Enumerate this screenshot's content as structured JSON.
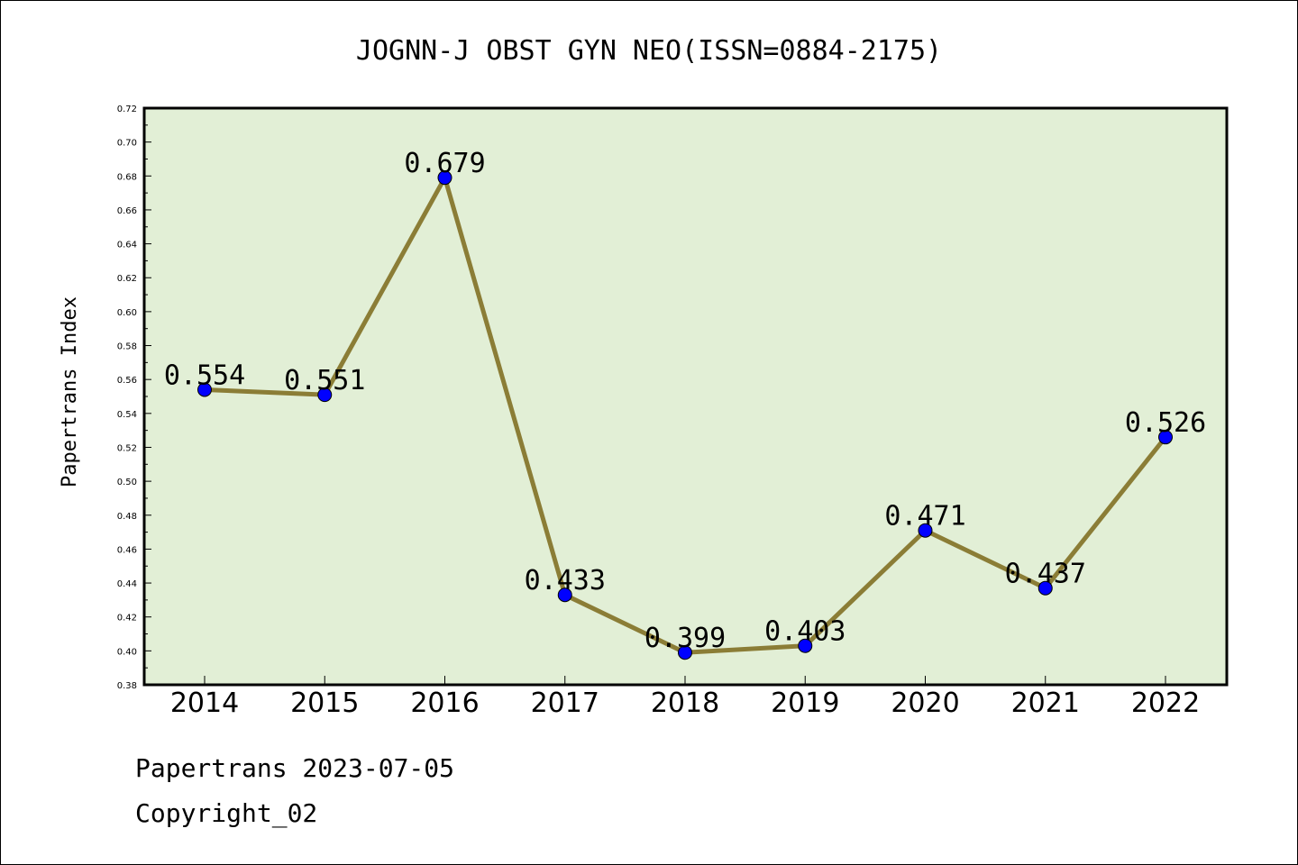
{
  "chart_data": {
    "type": "line",
    "title": "JOGNN-J OBST GYN NEO(ISSN=0884-2175)",
    "xlabel": "",
    "ylabel": "Papertrans Index",
    "categories": [
      "2014",
      "2015",
      "2016",
      "2017",
      "2018",
      "2019",
      "2020",
      "2021",
      "2022"
    ],
    "series": [
      {
        "values": [
          0.554,
          0.551,
          0.679,
          0.433,
          0.399,
          0.403,
          0.471,
          0.437,
          0.526
        ]
      }
    ],
    "data_labels": [
      "0.554",
      "0.551",
      "0.679",
      "0.433",
      "0.399",
      "0.403",
      "0.471",
      "0.437",
      "0.526"
    ],
    "ylim": [
      0.38,
      0.72
    ],
    "yticks": [
      "0.38",
      "0.40",
      "0.42",
      "0.44",
      "0.46",
      "0.48",
      "0.50",
      "0.52",
      "0.54",
      "0.56",
      "0.58",
      "0.60",
      "0.62",
      "0.64",
      "0.66",
      "0.68",
      "0.70",
      "0.72"
    ],
    "grid": false,
    "legend": "none",
    "colors": {
      "plot_background": "#e2efd6",
      "line": "#8b7d36",
      "marker": "#0000ff"
    }
  },
  "footer": {
    "line1": "Papertrans 2023-07-05",
    "line2": "Copyright_02"
  }
}
